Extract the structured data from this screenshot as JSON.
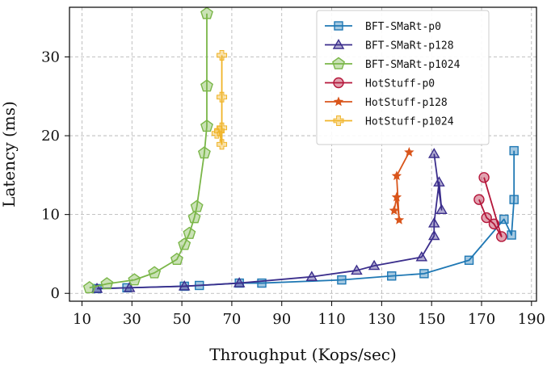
{
  "chart_data": {
    "type": "line",
    "xlabel": "Throughput (Kops/sec)",
    "ylabel": "Latency (ms)",
    "xlim": [
      5,
      192
    ],
    "ylim": [
      -1,
      36.3
    ],
    "xticks": [
      10,
      30,
      50,
      70,
      90,
      110,
      130,
      150,
      170,
      190
    ],
    "yticks": [
      0,
      10,
      20,
      30
    ],
    "grid": true,
    "legend_position": "top-right",
    "series": [
      {
        "name": "BFT-SMaRt-p0",
        "color": "#1f78b4",
        "marker": "square",
        "x": [
          16,
          28,
          51,
          57,
          73,
          82,
          114,
          134,
          147,
          165,
          179,
          182,
          183,
          183
        ],
        "y": [
          0.6,
          0.7,
          0.9,
          1.0,
          1.3,
          1.3,
          1.7,
          2.2,
          2.5,
          4.2,
          9.4,
          7.4,
          11.9,
          18.1
        ]
      },
      {
        "name": "BFT-SMaRt-p128",
        "color": "#3b2e8c",
        "marker": "triangle",
        "x": [
          16,
          29,
          51,
          73,
          102,
          120,
          127,
          146,
          151,
          151,
          153,
          154,
          151
        ],
        "y": [
          0.6,
          0.7,
          0.9,
          1.3,
          2.1,
          2.9,
          3.5,
          4.6,
          7.3,
          8.9,
          14.1,
          10.6,
          17.7
        ]
      },
      {
        "name": "BFT-SMaRt-p1024",
        "color": "#7ab648",
        "marker": "pentagon",
        "x": [
          13,
          20,
          31,
          39,
          48,
          51,
          53,
          55,
          56,
          59,
          60,
          60,
          60
        ],
        "y": [
          0.7,
          1.2,
          1.7,
          2.6,
          4.3,
          6.2,
          7.6,
          9.6,
          11.0,
          17.8,
          21.2,
          26.3,
          35.5
        ]
      },
      {
        "name": "HotStuff-p0",
        "color": "#b5163a",
        "marker": "circle",
        "x": [
          169,
          172,
          175,
          178,
          171
        ],
        "y": [
          11.9,
          9.6,
          8.8,
          7.2,
          14.7
        ]
      },
      {
        "name": "HotStuff-p128",
        "color": "#d9551b",
        "marker": "star",
        "x": [
          135,
          136,
          137,
          136,
          141
        ],
        "y": [
          10.5,
          12.2,
          9.3,
          14.9,
          17.9
        ]
      },
      {
        "name": "HotStuff-p1024",
        "color": "#f0b429",
        "marker": "plus",
        "x": [
          64,
          65,
          66,
          66,
          66,
          66
        ],
        "y": [
          20.3,
          20.6,
          18.9,
          21.0,
          24.9,
          30.2
        ]
      }
    ]
  }
}
